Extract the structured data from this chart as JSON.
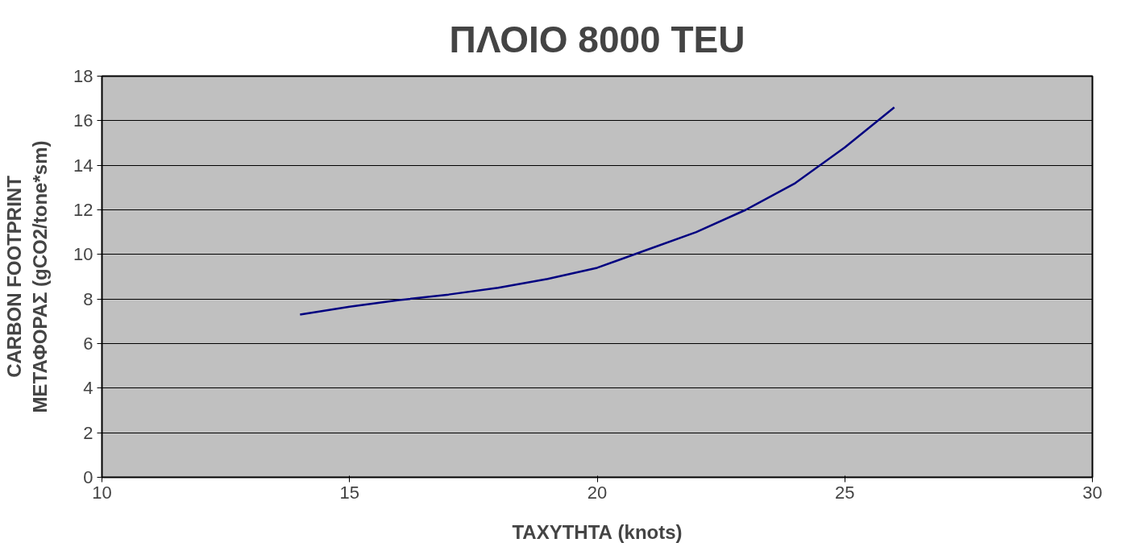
{
  "chart_data": {
    "type": "line",
    "title": "ΠΛΟΙΟ 8000 TEU",
    "xlabel": "ΤΑΧΥΤΗΤΑ (knots)",
    "ylabel": "CARBON FOOTPRINT\nΜΕΤΑΦΟΡΑΣ (gCO2/tone*sm)",
    "x": [
      14,
      15,
      16,
      17,
      18,
      19,
      20,
      21,
      22,
      23,
      24,
      25,
      26
    ],
    "series": [
      {
        "color": "#000080",
        "values": [
          7.3,
          7.65,
          7.95,
          8.2,
          8.5,
          8.9,
          9.4,
          10.2,
          11.0,
          12.0,
          13.2,
          14.8,
          16.6
        ]
      }
    ],
    "xlim": [
      10,
      30
    ],
    "xticks": [
      10,
      15,
      20,
      25,
      30
    ],
    "ylim": [
      0,
      18
    ],
    "yticks": [
      0,
      2,
      4,
      6,
      8,
      10,
      12,
      14,
      16,
      18
    ],
    "grid": "y",
    "marker": "none",
    "line_style": "solid"
  }
}
